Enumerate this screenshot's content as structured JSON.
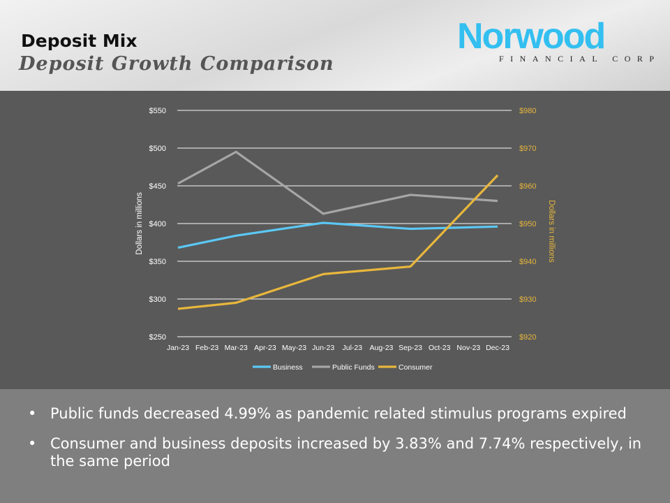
{
  "header": {
    "title": "Deposit Mix",
    "subtitle": "Deposit Growth Comparison"
  },
  "logo": {
    "main": "Norwood",
    "sub": "FINANCIAL CORP"
  },
  "bullets": [
    "Public funds decreased 4.99% as pandemic related stimulus programs expired",
    "Consumer and business deposits increased by 3.83% and 7.74% respectively, in the same period"
  ],
  "chart_data": {
    "type": "line",
    "categories": [
      "Jan-23",
      "Feb-23",
      "Mar-23",
      "Apr-23",
      "May-23",
      "Jun-23",
      "Jul-23",
      "Aug-23",
      "Sep-23",
      "Oct-23",
      "Nov-23",
      "Dec-23"
    ],
    "ylabel": "Dollars in millions",
    "y2label": "Dollars in millions",
    "ylim": [
      250,
      550
    ],
    "y2lim": [
      920,
      980
    ],
    "yticks": [
      "$250",
      "$300",
      "$350",
      "$400",
      "$450",
      "$500",
      "$550"
    ],
    "y2ticks": [
      "$920",
      "$930",
      "$940",
      "$950",
      "$960",
      "$970",
      "$980"
    ],
    "grid": true,
    "legend_position": "bottom",
    "series": [
      {
        "name": "Business",
        "axis": "left",
        "color": "#5bc8f5",
        "values": [
          368,
          null,
          384,
          null,
          null,
          401,
          null,
          null,
          393,
          null,
          null,
          396
        ]
      },
      {
        "name": "Public Funds",
        "axis": "left",
        "color": "#a6a6a6",
        "values": [
          453,
          null,
          495,
          null,
          null,
          413,
          null,
          null,
          438,
          null,
          null,
          430
        ]
      },
      {
        "name": "Consumer",
        "axis": "right",
        "color": "#e8b73c",
        "values": [
          927.4,
          null,
          929,
          null,
          null,
          936.6,
          null,
          null,
          938.6,
          null,
          null,
          962.8
        ]
      }
    ],
    "colors": {
      "right_axis": "#e8b73c",
      "text": "#ffffff",
      "grid": "#d9d9d9"
    }
  }
}
